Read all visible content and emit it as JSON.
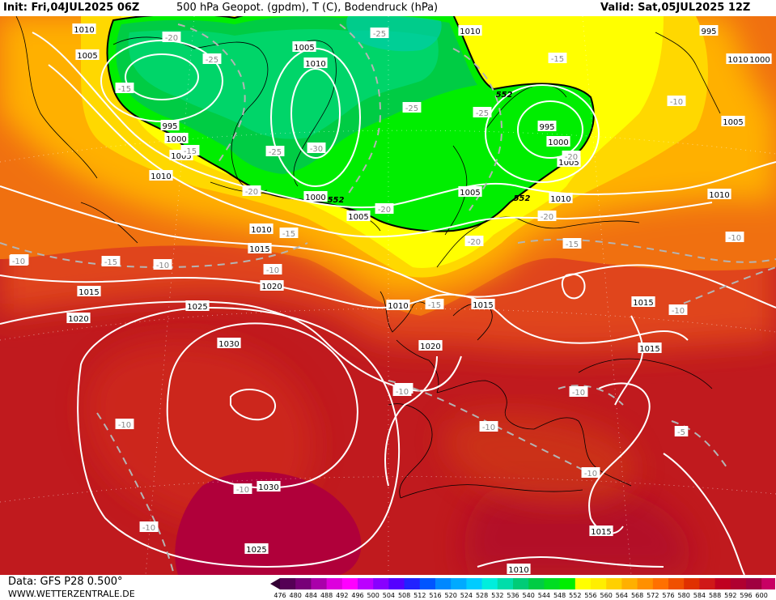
{
  "header": {
    "init": "Init: Fri,04JUL2025 06Z",
    "title": "500 hPa Geopot. (gpdm), T (C), Bodendruck (hPa)",
    "valid": "Valid: Sat,05JUL2025 12Z"
  },
  "footer": {
    "data_source": "Data: GFS P28 0.500°",
    "website": "WWW.WETTERZENTRALE.DE"
  },
  "legend": {
    "values": [
      "476",
      "480",
      "484",
      "488",
      "492",
      "496",
      "500",
      "504",
      "508",
      "512",
      "516",
      "520",
      "524",
      "528",
      "532",
      "536",
      "540",
      "544",
      "548",
      "552",
      "556",
      "560",
      "564",
      "568",
      "572",
      "576",
      "580",
      "584",
      "588",
      "592",
      "596",
      "600"
    ],
    "colors": [
      "#330033",
      "#550055",
      "#770077",
      "#aa00aa",
      "#dd00dd",
      "#ff00ff",
      "#bb00ff",
      "#8800ff",
      "#5500ff",
      "#2222ff",
      "#0055ff",
      "#0088ff",
      "#00aaff",
      "#00ccff",
      "#00eedd",
      "#00ddaa",
      "#00cc77",
      "#00cc44",
      "#00dd22",
      "#00ee00",
      "#ffff00",
      "#ffee00",
      "#ffd000",
      "#ffb000",
      "#ff9000",
      "#ff7000",
      "#f05000",
      "#e03000",
      "#d01818",
      "#c00020",
      "#b00030",
      "#a00040",
      "#c80064"
    ]
  },
  "isobars": {
    "labels": [
      {
        "t": "1010"
      },
      {
        "t": "1005"
      },
      {
        "t": "1010"
      },
      {
        "t": "1005"
      },
      {
        "t": "1010"
      },
      {
        "t": "995"
      },
      {
        "t": "1000"
      },
      {
        "t": "1005"
      },
      {
        "t": "1010"
      },
      {
        "t": "1000"
      },
      {
        "t": "1005"
      },
      {
        "t": "1005"
      },
      {
        "t": "1010"
      },
      {
        "t": "995"
      },
      {
        "t": "1000"
      },
      {
        "t": "1005"
      },
      {
        "t": "1010"
      },
      {
        "t": "995"
      },
      {
        "t": "1005"
      },
      {
        "t": "1010"
      },
      {
        "t": "1010"
      },
      {
        "t": "1015"
      },
      {
        "t": "1020"
      },
      {
        "t": "1015"
      },
      {
        "t": "1020"
      },
      {
        "t": "1025"
      },
      {
        "t": "1030"
      },
      {
        "t": "1010"
      },
      {
        "t": "1015"
      },
      {
        "t": "1020"
      },
      {
        "t": "1015"
      },
      {
        "t": "1015"
      },
      {
        "t": "1030"
      },
      {
        "t": "1025"
      },
      {
        "t": "1015"
      },
      {
        "t": "1010"
      },
      {
        "t": "1000"
      }
    ]
  },
  "temperature_labels": [
    {
      "t": "-20"
    },
    {
      "t": "-25"
    },
    {
      "t": "-25"
    },
    {
      "t": "-15"
    },
    {
      "t": "-25"
    },
    {
      "t": "-25"
    },
    {
      "t": "-30"
    },
    {
      "t": "-25"
    },
    {
      "t": "-20"
    },
    {
      "t": "-20"
    },
    {
      "t": "-20"
    },
    {
      "t": "-15"
    },
    {
      "t": "-15"
    },
    {
      "t": "-15"
    },
    {
      "t": "-20"
    },
    {
      "t": "-20"
    },
    {
      "t": "-15"
    },
    {
      "t": "-10"
    },
    {
      "t": "-15"
    },
    {
      "t": "-10"
    },
    {
      "t": "-10"
    },
    {
      "t": "-10"
    },
    {
      "t": "-15"
    },
    {
      "t": "-10"
    },
    {
      "t": "-10"
    },
    {
      "t": "-10"
    },
    {
      "t": "-10"
    },
    {
      "t": "-10"
    },
    {
      "t": "-10"
    },
    {
      "t": "-10"
    },
    {
      "t": "-5"
    },
    {
      "t": "-10"
    },
    {
      "t": "-10"
    },
    {
      "t": "-10"
    },
    {
      "t": "-10"
    }
  ],
  "geopotential_labels": [
    {
      "t": "552"
    },
    {
      "t": "552"
    },
    {
      "t": "552"
    }
  ]
}
